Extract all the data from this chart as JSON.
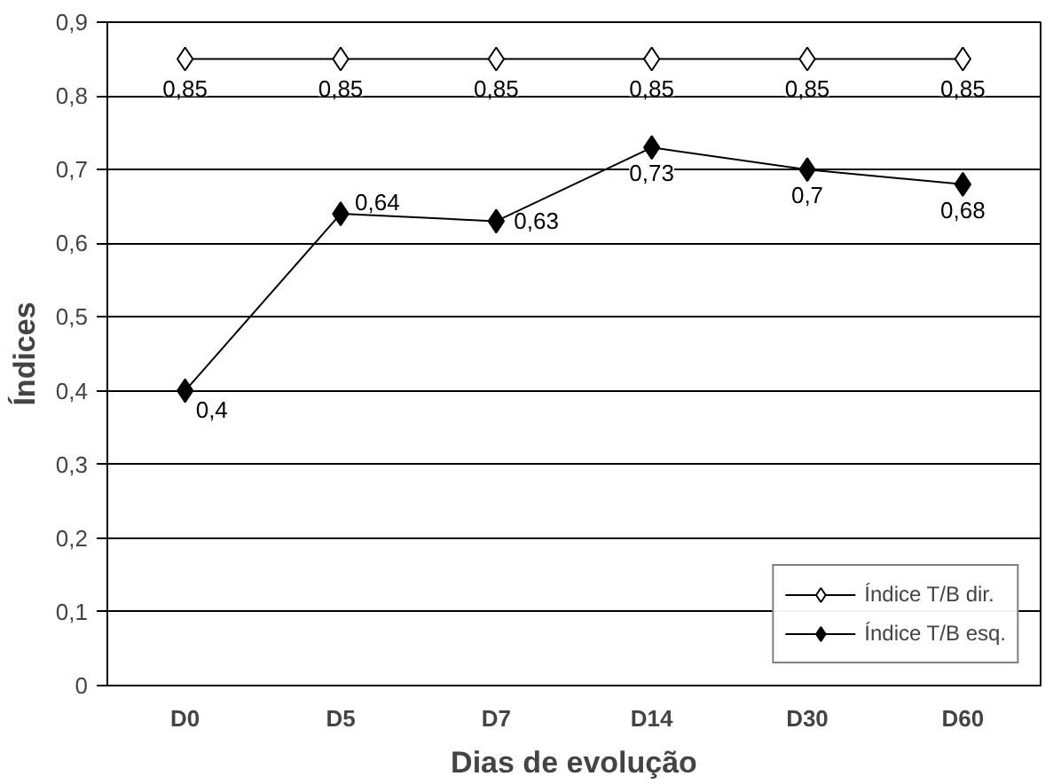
{
  "chart_data": {
    "type": "line",
    "xlabel": "Dias de evolução",
    "ylabel": "Índices",
    "categories": [
      "D0",
      "D5",
      "D7",
      "D14",
      "D30",
      "D60"
    ],
    "series": [
      {
        "name": "Índice T/B dir.",
        "color": "#ffffff",
        "values": [
          0.85,
          0.85,
          0.85,
          0.85,
          0.85,
          0.85
        ],
        "value_labels": [
          "0,85",
          "0,85",
          "0,85",
          "0,85",
          "0,85",
          "0,85"
        ]
      },
      {
        "name": "Índice T/B esq.",
        "color": "#000000",
        "values": [
          0.4,
          0.64,
          0.63,
          0.73,
          0.7,
          0.68
        ],
        "value_labels": [
          "0,4",
          "0,64",
          "0,63",
          "0,73",
          "0,7",
          "0,68"
        ]
      }
    ],
    "ylim": [
      0,
      0.9
    ],
    "yticks": [
      0,
      {
        "value": 0.1,
        "label": "0,1"
      },
      {
        "value": 0.2,
        "label": "0,2"
      },
      {
        "value": 0.3,
        "label": "0,3"
      },
      {
        "value": 0.4,
        "label": "0,4"
      },
      {
        "value": 0.5,
        "label": "0,5"
      },
      {
        "value": 0.6,
        "label": "0,6"
      },
      {
        "value": 0.7,
        "label": "0,7"
      },
      {
        "value": 0.8,
        "label": "0,8"
      },
      {
        "value": 0.9,
        "label": "0,9"
      }
    ],
    "grid": "y",
    "legend": "bottom right",
    "marker": "diamond",
    "line_style": "solid"
  }
}
